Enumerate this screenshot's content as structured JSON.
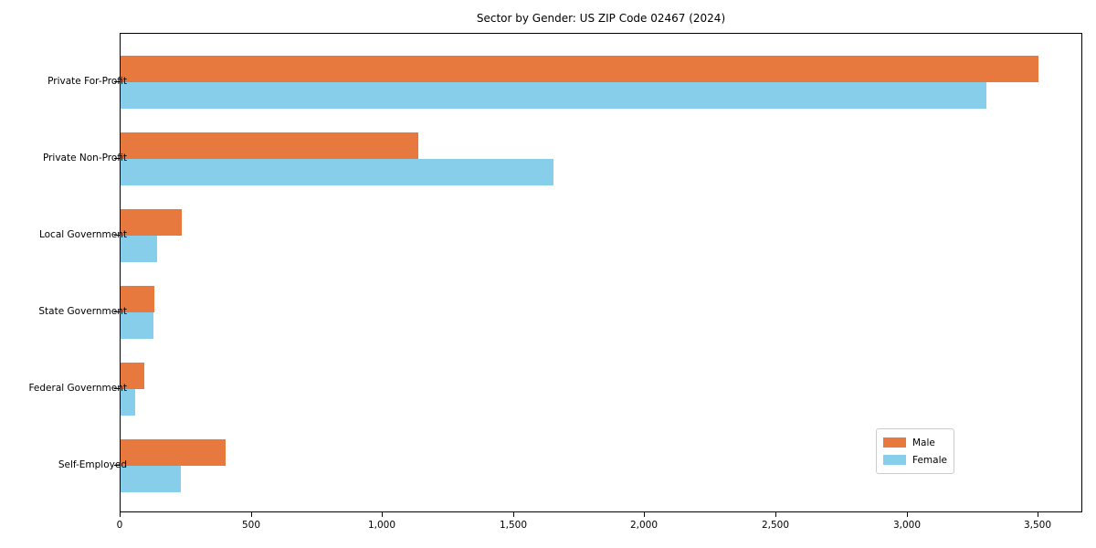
{
  "chart_data": {
    "type": "bar",
    "orientation": "horizontal",
    "title": "Sector by Gender: US ZIP Code 02467 (2024)",
    "categories": [
      "Private For-Profit",
      "Private Non-Profit",
      "Local Government",
      "State Government",
      "Federal Government",
      "Self-Employed"
    ],
    "series": [
      {
        "name": "Male",
        "color": "#E8793E",
        "values": [
          3500,
          1135,
          235,
          130,
          90,
          400
        ]
      },
      {
        "name": "Female",
        "color": "#87CEEB",
        "values": [
          3300,
          1650,
          140,
          125,
          55,
          230
        ]
      }
    ],
    "xlim": [
      0,
      3670
    ],
    "x_ticks": [
      {
        "value": 0,
        "label": "0"
      },
      {
        "value": 500,
        "label": "500"
      },
      {
        "value": 1000,
        "label": "1,000"
      },
      {
        "value": 1500,
        "label": "1,500"
      },
      {
        "value": 2000,
        "label": "2,000"
      },
      {
        "value": 2500,
        "label": "2,500"
      },
      {
        "value": 3000,
        "label": "3,000"
      },
      {
        "value": 3500,
        "label": "3,500"
      }
    ],
    "xlabel": "",
    "ylabel": "",
    "grid": false,
    "legend_position": "lower right"
  }
}
